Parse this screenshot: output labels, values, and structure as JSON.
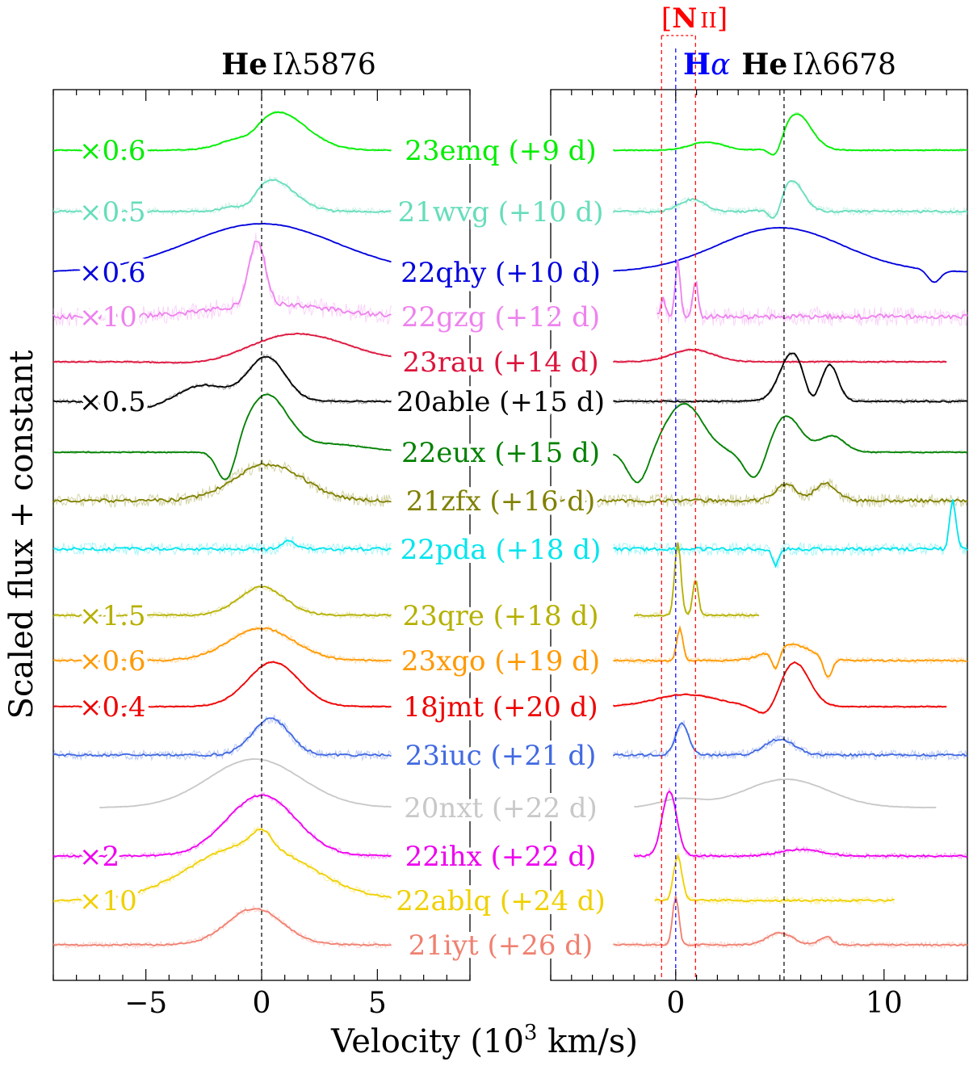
{
  "chart_data": {
    "type": "line",
    "title_left": "He Iλ5876",
    "title_left_parts": [
      "He",
      "Iλ5876"
    ],
    "title_right_parts": [
      "H",
      "α",
      "He",
      "Iλ6678"
    ],
    "nii_label_parts": [
      "[",
      "N",
      "II",
      "]"
    ],
    "xlabel": "Velocity (10³ km/s)",
    "xlabel_parts": [
      "Velocity (10",
      "3",
      " km/s)"
    ],
    "ylabel": "Scaled flux + constant",
    "panels": [
      {
        "name": "He I 5876",
        "xlim": [
          -9,
          9
        ],
        "ticks": [
          -5,
          0,
          5
        ],
        "tick_labels": [
          "−5",
          "0",
          "5"
        ],
        "ref_lines": [
          0
        ]
      },
      {
        "name": "Halpha / He I 6678",
        "xlim": [
          -6,
          14
        ],
        "ticks": [
          0,
          10
        ],
        "tick_labels": [
          "0",
          "10"
        ],
        "ref_lines": [
          0,
          5.2
        ],
        "nii_lines": [
          -0.68,
          0.95
        ]
      }
    ],
    "series": [
      {
        "name": "23emq (+9 d)",
        "color": "#00ee00",
        "scale": "×0.6"
      },
      {
        "name": "21wvg (+10 d)",
        "color": "#66ddbb",
        "scale": "×0.5"
      },
      {
        "name": "22qhy (+10 d)",
        "color": "#0000dd",
        "scale": "×0.6"
      },
      {
        "name": "22gzg (+12 d)",
        "color": "#ee82ee",
        "scale": "×10"
      },
      {
        "name": "23rau (+14 d)",
        "color": "#dc143c",
        "scale": ""
      },
      {
        "name": "20able (+15 d)",
        "color": "#000000",
        "scale": "×0.5"
      },
      {
        "name": "22eux (+15 d)",
        "color": "#008000",
        "scale": ""
      },
      {
        "name": "21zfx (+16 d)",
        "color": "#808000",
        "scale": ""
      },
      {
        "name": "22pda (+18 d)",
        "color": "#00e5ee",
        "scale": ""
      },
      {
        "name": "23qre (+18 d)",
        "color": "#b5b000",
        "scale": "×1.5"
      },
      {
        "name": "23xgo (+19 d)",
        "color": "#ff9900",
        "scale": "×0.6"
      },
      {
        "name": "18jmt (+20 d)",
        "color": "#ee0000",
        "scale": "×0.4"
      },
      {
        "name": "23iuc (+21 d)",
        "color": "#4169e1",
        "scale": ""
      },
      {
        "name": "20nxt (+22 d)",
        "color": "#c8c8c8",
        "scale": ""
      },
      {
        "name": "22ihx (+22 d)",
        "color": "#ee00ee",
        "scale": "×2"
      },
      {
        "name": "22ablq (+24 d)",
        "color": "#f0d000",
        "scale": "×10"
      },
      {
        "name": "21iyt (+26 d)",
        "color": "#f08070",
        "scale": ""
      }
    ]
  }
}
